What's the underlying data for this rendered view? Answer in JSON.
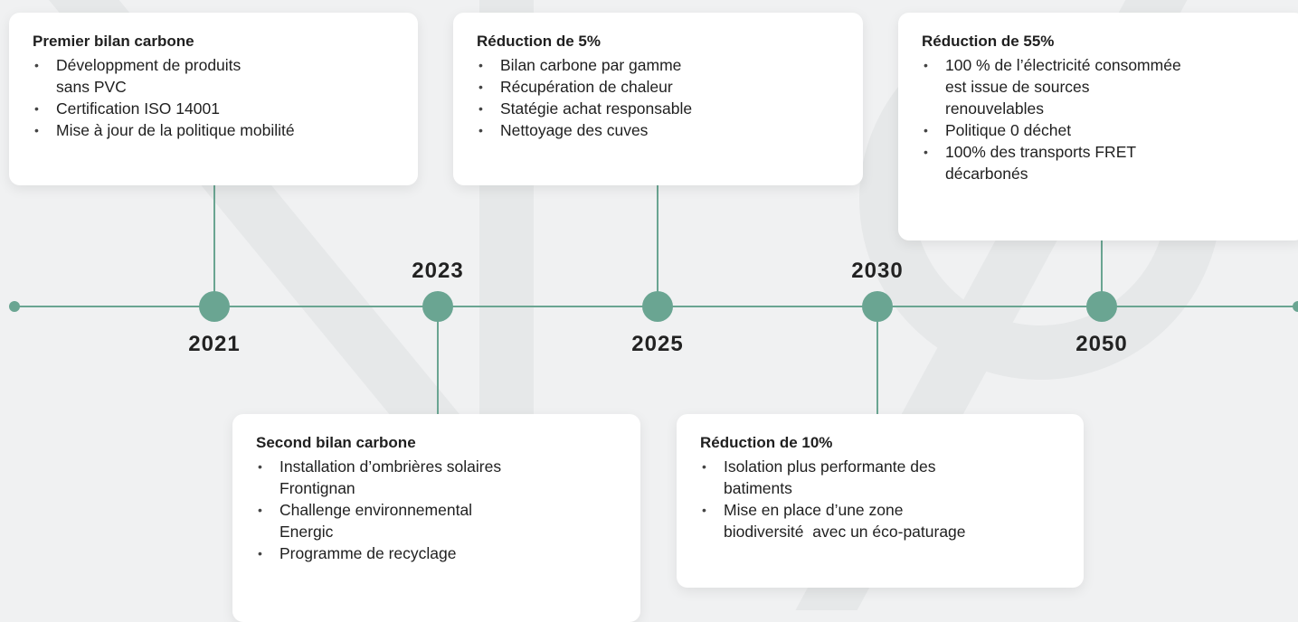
{
  "milestones": [
    {
      "year": "2021",
      "title": "Premier bilan carbone",
      "items": [
        "Développment de produits\nsans PVC",
        "Certification ISO 14001",
        "Mise à jour de la politique mobilité"
      ]
    },
    {
      "year": "2023",
      "title": "Second bilan carbone",
      "items": [
        "Installation d’ombrières solaires\nFrontignan",
        "Challenge environnemental\nEnergic",
        "Programme de recyclage"
      ]
    },
    {
      "year": "2025",
      "title": "Réduction de 5%",
      "items": [
        "Bilan carbone par gamme",
        "Récupération de chaleur",
        "Statégie achat responsable",
        "Nettoyage des cuves"
      ]
    },
    {
      "year": "2030",
      "title": "Réduction de 10%",
      "items": [
        "Isolation plus performante des\nbatiments",
        "Mise en place d’une zone\nbiodiversité  avec un éco-paturage"
      ]
    },
    {
      "year": "2050",
      "title": "Réduction de 55%",
      "items": [
        "100 % de l’électricité consommée\nest issue de sources\nrenouvelables",
        "Politique 0 déchet",
        "100% des transports FRET\ndécarbonés"
      ]
    }
  ]
}
